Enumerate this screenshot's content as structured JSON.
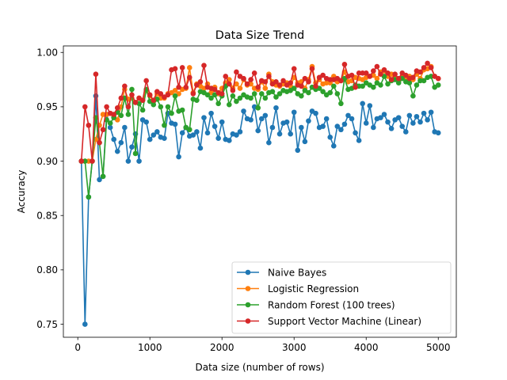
{
  "chart_data": {
    "type": "line",
    "title": "Data Size Trend",
    "xlabel": "Data size (number of rows)",
    "ylabel": "Accuracy",
    "xlim": [
      -200,
      5250
    ],
    "ylim": [
      0.738,
      1.006
    ],
    "xticks": [
      0,
      1000,
      2000,
      3000,
      4000,
      5000
    ],
    "yticks": [
      0.75,
      0.8,
      0.85,
      0.9,
      0.95,
      1.0
    ],
    "xtick_labels": [
      "0",
      "1000",
      "2000",
      "3000",
      "4000",
      "5000"
    ],
    "ytick_labels": [
      "0.75",
      "0.80",
      "0.85",
      "0.90",
      "0.95",
      "1.00"
    ],
    "grid": false,
    "legend_position": "lower-right",
    "x": [
      50,
      100,
      150,
      200,
      250,
      300,
      350,
      400,
      450,
      500,
      550,
      600,
      650,
      700,
      750,
      800,
      850,
      900,
      950,
      1000,
      1050,
      1100,
      1150,
      1200,
      1250,
      1300,
      1350,
      1400,
      1450,
      1500,
      1550,
      1600,
      1650,
      1700,
      1750,
      1800,
      1850,
      1900,
      1950,
      2000,
      2050,
      2100,
      2150,
      2200,
      2250,
      2300,
      2350,
      2400,
      2450,
      2500,
      2550,
      2600,
      2650,
      2700,
      2750,
      2800,
      2850,
      2900,
      2950,
      3000,
      3050,
      3100,
      3150,
      3200,
      3250,
      3300,
      3350,
      3400,
      3450,
      3500,
      3550,
      3600,
      3650,
      3700,
      3750,
      3800,
      3850,
      3900,
      3950,
      4000,
      4050,
      4100,
      4150,
      4200,
      4250,
      4300,
      4350,
      4400,
      4450,
      4500,
      4550,
      4600,
      4650,
      4700,
      4750,
      4800,
      4850,
      4900,
      4950,
      5000
    ],
    "series": [
      {
        "name": "Naive Bayes",
        "color": "#1f77b4",
        "values": [
          0.9,
          0.75,
          0.867,
          0.9,
          0.96,
          0.883,
          0.886,
          0.943,
          0.931,
          0.92,
          0.909,
          0.917,
          0.931,
          0.9,
          0.913,
          0.925,
          0.9,
          0.938,
          0.936,
          0.92,
          0.924,
          0.927,
          0.922,
          0.921,
          0.944,
          0.935,
          0.934,
          0.904,
          0.926,
          0.931,
          0.923,
          0.924,
          0.927,
          0.912,
          0.94,
          0.926,
          0.944,
          0.932,
          0.921,
          0.936,
          0.92,
          0.919,
          0.925,
          0.924,
          0.927,
          0.946,
          0.939,
          0.938,
          0.95,
          0.928,
          0.939,
          0.942,
          0.917,
          0.931,
          0.949,
          0.925,
          0.935,
          0.936,
          0.925,
          0.945,
          0.91,
          0.931,
          0.918,
          0.937,
          0.946,
          0.944,
          0.931,
          0.932,
          0.939,
          0.922,
          0.914,
          0.932,
          0.929,
          0.934,
          0.942,
          0.939,
          0.926,
          0.919,
          0.953,
          0.935,
          0.951,
          0.931,
          0.939,
          0.94,
          0.943,
          0.936,
          0.93,
          0.938,
          0.94,
          0.932,
          0.927,
          0.942,
          0.935,
          0.941,
          0.936,
          0.944,
          0.938,
          0.945,
          0.927,
          0.926
        ]
      },
      {
        "name": "Logistic Regression",
        "color": "#ff7f0e",
        "values": [
          0.9,
          0.9,
          0.9,
          0.9,
          0.92,
          0.933,
          0.943,
          0.943,
          0.944,
          0.941,
          0.938,
          0.95,
          0.966,
          0.957,
          0.958,
          0.954,
          0.958,
          0.956,
          0.965,
          0.96,
          0.955,
          0.962,
          0.958,
          0.958,
          0.962,
          0.963,
          0.965,
          0.962,
          0.966,
          0.967,
          0.986,
          0.963,
          0.971,
          0.969,
          0.967,
          0.971,
          0.963,
          0.968,
          0.962,
          0.967,
          0.972,
          0.975,
          0.967,
          0.971,
          0.967,
          0.975,
          0.97,
          0.971,
          0.967,
          0.966,
          0.973,
          0.967,
          0.98,
          0.973,
          0.97,
          0.969,
          0.971,
          0.972,
          0.969,
          0.977,
          0.972,
          0.973,
          0.967,
          0.975,
          0.987,
          0.972,
          0.975,
          0.971,
          0.972,
          0.972,
          0.978,
          0.973,
          0.974,
          0.982,
          0.973,
          0.974,
          0.977,
          0.976,
          0.975,
          0.977,
          0.978,
          0.979,
          0.976,
          0.982,
          0.983,
          0.978,
          0.98,
          0.976,
          0.974,
          0.978,
          0.977,
          0.978,
          0.975,
          0.98,
          0.976,
          0.984,
          0.985,
          0.987,
          0.978,
          0.976
        ]
      },
      {
        "name": "Random Forest (100 trees)",
        "color": "#2ca02c",
        "values": [
          0.9,
          0.9,
          0.867,
          0.9,
          0.94,
          0.917,
          0.886,
          0.938,
          0.935,
          0.94,
          0.945,
          0.942,
          0.958,
          0.943,
          0.966,
          0.907,
          0.953,
          0.947,
          0.966,
          0.955,
          0.952,
          0.957,
          0.95,
          0.933,
          0.95,
          0.944,
          0.96,
          0.946,
          0.947,
          0.931,
          0.929,
          0.957,
          0.956,
          0.964,
          0.963,
          0.961,
          0.958,
          0.961,
          0.953,
          0.96,
          0.969,
          0.952,
          0.96,
          0.955,
          0.958,
          0.961,
          0.959,
          0.958,
          0.962,
          0.949,
          0.962,
          0.958,
          0.963,
          0.964,
          0.959,
          0.962,
          0.965,
          0.964,
          0.965,
          0.967,
          0.962,
          0.96,
          0.965,
          0.963,
          0.968,
          0.966,
          0.967,
          0.964,
          0.961,
          0.963,
          0.969,
          0.962,
          0.953,
          0.976,
          0.966,
          0.967,
          0.97,
          0.969,
          0.969,
          0.972,
          0.97,
          0.968,
          0.972,
          0.97,
          0.978,
          0.971,
          0.974,
          0.975,
          0.972,
          0.976,
          0.973,
          0.972,
          0.96,
          0.97,
          0.974,
          0.974,
          0.977,
          0.978,
          0.968,
          0.97
        ]
      },
      {
        "name": "Support Vector Machine (Linear)",
        "color": "#d62728",
        "values": [
          0.9,
          0.95,
          0.933,
          0.9,
          0.98,
          0.917,
          0.929,
          0.95,
          0.944,
          0.943,
          0.949,
          0.958,
          0.969,
          0.95,
          0.961,
          0.954,
          0.958,
          0.956,
          0.974,
          0.961,
          0.956,
          0.964,
          0.962,
          0.959,
          0.961,
          0.984,
          0.985,
          0.968,
          0.986,
          0.968,
          0.977,
          0.962,
          0.97,
          0.973,
          0.988,
          0.968,
          0.967,
          0.966,
          0.963,
          0.962,
          0.978,
          0.971,
          0.965,
          0.982,
          0.978,
          0.976,
          0.971,
          0.975,
          0.981,
          0.968,
          0.974,
          0.973,
          0.978,
          0.971,
          0.973,
          0.97,
          0.974,
          0.97,
          0.972,
          0.985,
          0.97,
          0.969,
          0.976,
          0.973,
          0.985,
          0.969,
          0.977,
          0.979,
          0.976,
          0.975,
          0.975,
          0.976,
          0.974,
          0.989,
          0.978,
          0.979,
          0.968,
          0.981,
          0.981,
          0.981,
          0.978,
          0.983,
          0.987,
          0.98,
          0.984,
          0.981,
          0.975,
          0.98,
          0.976,
          0.981,
          0.979,
          0.976,
          0.977,
          0.983,
          0.982,
          0.986,
          0.99,
          0.986,
          0.978,
          0.976
        ]
      }
    ]
  }
}
